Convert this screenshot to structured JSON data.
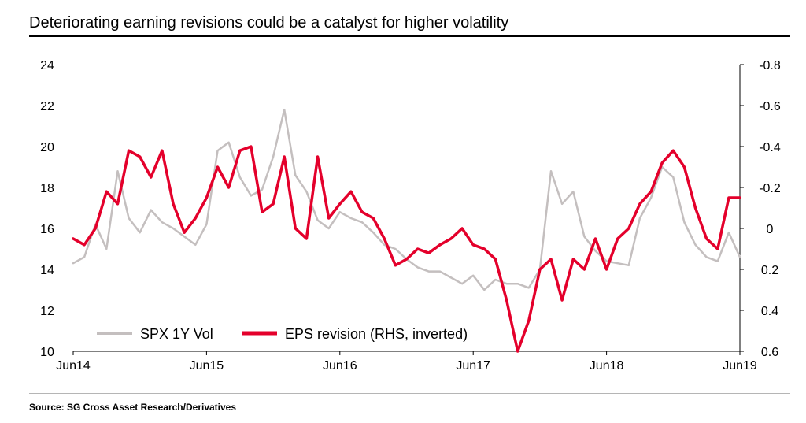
{
  "title": "Deteriorating earning revisions could be a catalyst for higher volatility",
  "source": "Source: SG Cross Asset Research/Derivatives",
  "chart_data": {
    "type": "line",
    "x_start": "2014-06",
    "x_end": "2019-06",
    "x_ticks": [
      "Jun14",
      "Jun15",
      "Jun16",
      "Jun17",
      "Jun18",
      "Jun19"
    ],
    "ylim_left": [
      10,
      24
    ],
    "yticks_left": [
      "10",
      "12",
      "14",
      "16",
      "18",
      "20",
      "22",
      "24"
    ],
    "ylim_right": [
      0.6,
      -0.8
    ],
    "yticks_right": [
      "0.6",
      "0.4",
      "0.2",
      "0",
      "-0.2",
      "-0.4",
      "-0.6",
      "-0.8"
    ],
    "right_axis_inverted": true,
    "grid": false,
    "legend_position": "bottom-left",
    "series": [
      {
        "name": "SPX 1Y Vol",
        "axis": "left",
        "color": "#c4bfbf",
        "x": [
          "2014-06",
          "2014-07",
          "2014-08",
          "2014-09",
          "2014-10",
          "2014-11",
          "2014-12",
          "2015-01",
          "2015-02",
          "2015-03",
          "2015-04",
          "2015-05",
          "2015-06",
          "2015-07",
          "2015-08",
          "2015-09",
          "2015-10",
          "2015-11",
          "2015-12",
          "2016-01",
          "2016-02",
          "2016-03",
          "2016-04",
          "2016-05",
          "2016-06",
          "2016-07",
          "2016-08",
          "2016-09",
          "2016-10",
          "2016-11",
          "2016-12",
          "2017-01",
          "2017-02",
          "2017-03",
          "2017-04",
          "2017-05",
          "2017-06",
          "2017-07",
          "2017-08",
          "2017-09",
          "2017-10",
          "2017-11",
          "2017-12",
          "2018-01",
          "2018-02",
          "2018-03",
          "2018-04",
          "2018-05",
          "2018-06",
          "2018-07",
          "2018-08",
          "2018-09",
          "2018-10",
          "2018-11",
          "2018-12",
          "2019-01",
          "2019-02",
          "2019-03",
          "2019-04",
          "2019-05",
          "2019-06"
        ],
        "values": [
          14.3,
          14.6,
          16.2,
          15.0,
          18.8,
          16.5,
          15.8,
          16.9,
          16.3,
          16.0,
          15.6,
          15.2,
          16.2,
          19.8,
          20.2,
          18.5,
          17.6,
          17.9,
          19.5,
          21.8,
          18.6,
          17.8,
          16.4,
          16.0,
          16.8,
          16.5,
          16.3,
          15.8,
          15.2,
          15.0,
          14.5,
          14.1,
          13.9,
          13.9,
          13.6,
          13.3,
          13.7,
          13.0,
          13.5,
          13.3,
          13.3,
          13.1,
          14.0,
          18.8,
          17.2,
          17.8,
          15.6,
          14.9,
          14.4,
          14.3,
          14.2,
          16.5,
          17.5,
          19.0,
          18.5,
          16.3,
          15.2,
          14.6,
          14.4,
          15.8,
          14.6
        ]
      },
      {
        "name": "EPS revision (RHS, inverted)",
        "axis": "right",
        "color": "#e4002b",
        "x": [
          "2014-06",
          "2014-07",
          "2014-08",
          "2014-09",
          "2014-10",
          "2014-11",
          "2014-12",
          "2015-01",
          "2015-02",
          "2015-03",
          "2015-04",
          "2015-05",
          "2015-06",
          "2015-07",
          "2015-08",
          "2015-09",
          "2015-10",
          "2015-11",
          "2015-12",
          "2016-01",
          "2016-02",
          "2016-03",
          "2016-04",
          "2016-05",
          "2016-06",
          "2016-07",
          "2016-08",
          "2016-09",
          "2016-10",
          "2016-11",
          "2016-12",
          "2017-01",
          "2017-02",
          "2017-03",
          "2017-04",
          "2017-05",
          "2017-06",
          "2017-07",
          "2017-08",
          "2017-09",
          "2017-10",
          "2017-11",
          "2017-12",
          "2018-01",
          "2018-02",
          "2018-03",
          "2018-04",
          "2018-05",
          "2018-06",
          "2018-07",
          "2018-08",
          "2018-09",
          "2018-10",
          "2018-11",
          "2018-12",
          "2019-01",
          "2019-02",
          "2019-03",
          "2019-04",
          "2019-05",
          "2019-06"
        ],
        "values": [
          0.05,
          0.08,
          0.0,
          -0.18,
          -0.12,
          -0.38,
          -0.35,
          -0.25,
          -0.38,
          -0.12,
          0.02,
          -0.05,
          -0.15,
          -0.3,
          -0.2,
          -0.38,
          -0.4,
          -0.08,
          -0.12,
          -0.35,
          0.0,
          0.05,
          -0.35,
          -0.05,
          -0.12,
          -0.18,
          -0.08,
          -0.05,
          0.05,
          0.18,
          0.15,
          0.1,
          0.12,
          0.08,
          0.05,
          0.0,
          0.08,
          0.1,
          0.15,
          0.35,
          0.6,
          0.45,
          0.2,
          0.15,
          0.35,
          0.15,
          0.2,
          0.05,
          0.2,
          0.05,
          0.0,
          -0.12,
          -0.18,
          -0.32,
          -0.38,
          -0.3,
          -0.1,
          0.05,
          0.1,
          -0.15,
          -0.15
        ]
      }
    ]
  }
}
